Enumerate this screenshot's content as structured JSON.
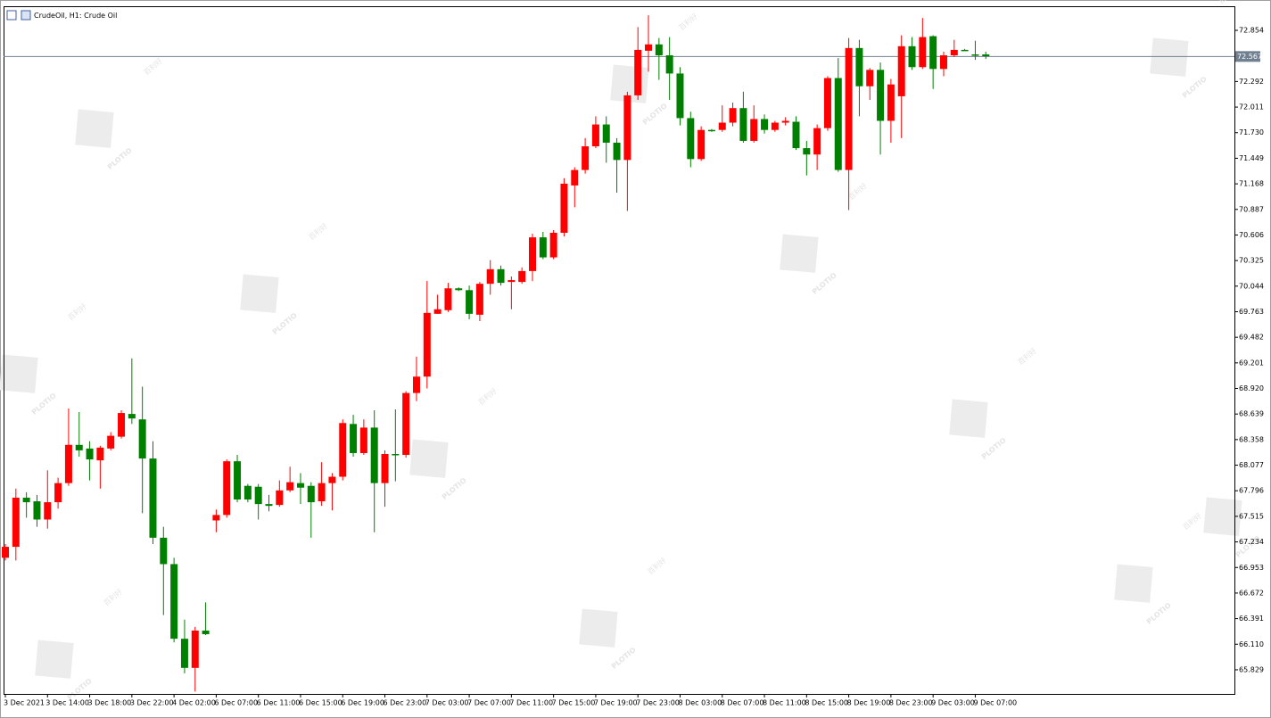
{
  "chart_data": {
    "type": "candlestick",
    "title": "CrudeOil, H1:  Crude Oil",
    "open": [
      67.06,
      67.18,
      67.72,
      67.68,
      67.48,
      67.67,
      67.88,
      68.3,
      68.26,
      68.13,
      68.26,
      68.39,
      68.64,
      68.58,
      68.15,
      67.28,
      66.99,
      66.17,
      65.85,
      66.26,
      67.47,
      67.53,
      68.12,
      67.85,
      67.84,
      67.65,
      67.64,
      67.8,
      67.88,
      67.85,
      67.68,
      67.88,
      67.95,
      68.53,
      68.21,
      68.49,
      67.88,
      68.2,
      68.19,
      68.87,
      69.05,
      69.74,
      69.78,
      70.02,
      70.0,
      69.73,
      70.07,
      70.23,
      70.09,
      70.09,
      70.21,
      70.58,
      70.36,
      70.63,
      71.15,
      71.32,
      71.58,
      71.82,
      71.62,
      71.43,
      72.14,
      72.63,
      72.7,
      72.58,
      72.38,
      71.89,
      71.44,
      71.76,
      71.76,
      71.84,
      72.0,
      71.64,
      71.88,
      71.76,
      71.84,
      71.85,
      71.56,
      71.49,
      71.78,
      72.33,
      71.32,
      72.66,
      72.24,
      72.42,
      71.86,
      72.13,
      72.68,
      72.45,
      72.79,
      72.43,
      72.58,
      72.64,
      72.59,
      72.59
    ],
    "high": [
      67.21,
      67.82,
      67.78,
      67.75,
      68.02,
      67.94,
      68.7,
      68.66,
      68.34,
      68.29,
      68.44,
      68.68,
      69.25,
      68.94,
      68.34,
      67.4,
      67.06,
      66.38,
      66.3,
      66.57,
      67.59,
      68.14,
      68.19,
      67.87,
      67.87,
      67.75,
      67.91,
      68.06,
      67.99,
      67.89,
      68.11,
      67.99,
      68.58,
      68.63,
      68.58,
      68.68,
      68.24,
      68.69,
      68.89,
      69.27,
      70.1,
      69.95,
      70.08,
      70.03,
      70.05,
      70.09,
      70.33,
      70.27,
      70.15,
      70.25,
      70.62,
      70.64,
      70.66,
      71.23,
      71.35,
      71.67,
      71.91,
      71.91,
      71.67,
      72.18,
      72.89,
      73.02,
      72.77,
      72.78,
      72.45,
      71.96,
      71.8,
      71.77,
      72.03,
      72.06,
      72.18,
      72.03,
      71.93,
      71.86,
      71.9,
      71.91,
      71.64,
      71.82,
      72.35,
      72.55,
      72.77,
      72.75,
      72.44,
      72.5,
      72.32,
      72.8,
      72.78,
      72.99,
      72.8,
      72.62,
      72.75,
      72.65,
      72.74,
      72.62
    ],
    "low": [
      67.03,
      67.03,
      67.5,
      67.4,
      67.38,
      67.6,
      67.85,
      68.17,
      67.91,
      67.82,
      68.24,
      68.37,
      68.53,
      67.55,
      67.21,
      66.43,
      66.13,
      65.79,
      65.59,
      66.21,
      67.34,
      67.5,
      67.67,
      67.67,
      67.48,
      67.57,
      67.62,
      67.78,
      67.65,
      67.28,
      67.63,
      67.58,
      67.91,
      68.17,
      68.19,
      67.34,
      67.62,
      67.9,
      68.16,
      68.78,
      68.92,
      69.74,
      69.76,
      69.99,
      69.68,
      69.66,
      69.95,
      70.05,
      69.79,
      70.07,
      70.1,
      70.34,
      70.34,
      70.59,
      70.91,
      71.28,
      71.56,
      71.4,
      71.07,
      70.87,
      72.09,
      72.4,
      72.31,
      72.09,
      71.81,
      71.35,
      71.42,
      71.74,
      71.74,
      71.8,
      71.62,
      71.62,
      71.72,
      71.74,
      71.81,
      71.54,
      71.26,
      71.32,
      71.75,
      71.3,
      70.88,
      71.91,
      72.09,
      71.49,
      71.62,
      71.67,
      72.42,
      72.43,
      72.21,
      72.35,
      72.56,
      72.63,
      72.53,
      72.54
    ],
    "close": [
      67.18,
      67.72,
      67.67,
      67.48,
      67.67,
      67.88,
      68.3,
      68.24,
      68.14,
      68.27,
      68.4,
      68.65,
      68.59,
      68.15,
      67.28,
      66.99,
      66.17,
      65.85,
      66.26,
      66.22,
      67.53,
      68.12,
      67.7,
      67.7,
      67.65,
      67.63,
      67.8,
      67.89,
      67.83,
      67.67,
      67.88,
      67.95,
      68.54,
      68.21,
      68.49,
      67.88,
      68.2,
      68.19,
      68.87,
      69.05,
      69.75,
      69.79,
      70.02,
      70.0,
      69.74,
      70.07,
      70.23,
      70.08,
      70.11,
      70.21,
      70.58,
      70.36,
      70.63,
      71.17,
      71.32,
      71.58,
      71.82,
      71.62,
      71.43,
      72.14,
      72.64,
      72.7,
      72.58,
      72.38,
      71.89,
      71.44,
      71.76,
      71.76,
      71.84,
      72.0,
      71.64,
      71.88,
      71.76,
      71.84,
      71.86,
      71.56,
      71.49,
      71.78,
      72.33,
      71.32,
      72.66,
      72.24,
      72.42,
      71.86,
      72.26,
      72.68,
      72.45,
      72.78,
      72.43,
      72.58,
      72.64,
      72.64,
      72.58,
      72.57
    ],
    "up_color": "#ff0000",
    "down_color": "#008000",
    "x_labels": [
      "3 Dec 2021",
      "3 Dec 14:00",
      "3 Dec 18:00",
      "3 Dec 22:00",
      "4 Dec 02:00",
      "6 Dec 07:00",
      "6 Dec 11:00",
      "6 Dec 15:00",
      "6 Dec 19:00",
      "6 Dec 23:00",
      "7 Dec 03:00",
      "7 Dec 07:00",
      "7 Dec 11:00",
      "7 Dec 15:00",
      "7 Dec 19:00",
      "7 Dec 23:00",
      "8 Dec 03:00",
      "8 Dec 07:00",
      "8 Dec 11:00",
      "8 Dec 15:00",
      "8 Dec 19:00",
      "8 Dec 23:00",
      "9 Dec 03:00",
      "9 Dec 07:00"
    ],
    "ylim": [
      65.564,
      73.119
    ],
    "yticks": [
      72.854,
      72.292,
      72.011,
      {
        "value": 71.73,
        "label": "71.730"
      },
      71.449,
      71.168,
      70.887,
      70.606,
      70.325,
      70.044,
      69.763,
      69.482,
      69.201,
      {
        "value": 68.92,
        "label": "68.920"
      },
      68.639,
      68.358,
      68.077,
      67.796,
      67.515,
      67.234,
      66.953,
      66.672,
      66.391,
      {
        "value": 66.11,
        "label": "66.110"
      },
      65.829
    ],
    "last_price": 72.567,
    "grid": false
  },
  "watermark": {
    "logo": "PLOTIO",
    "text": "百利好"
  }
}
